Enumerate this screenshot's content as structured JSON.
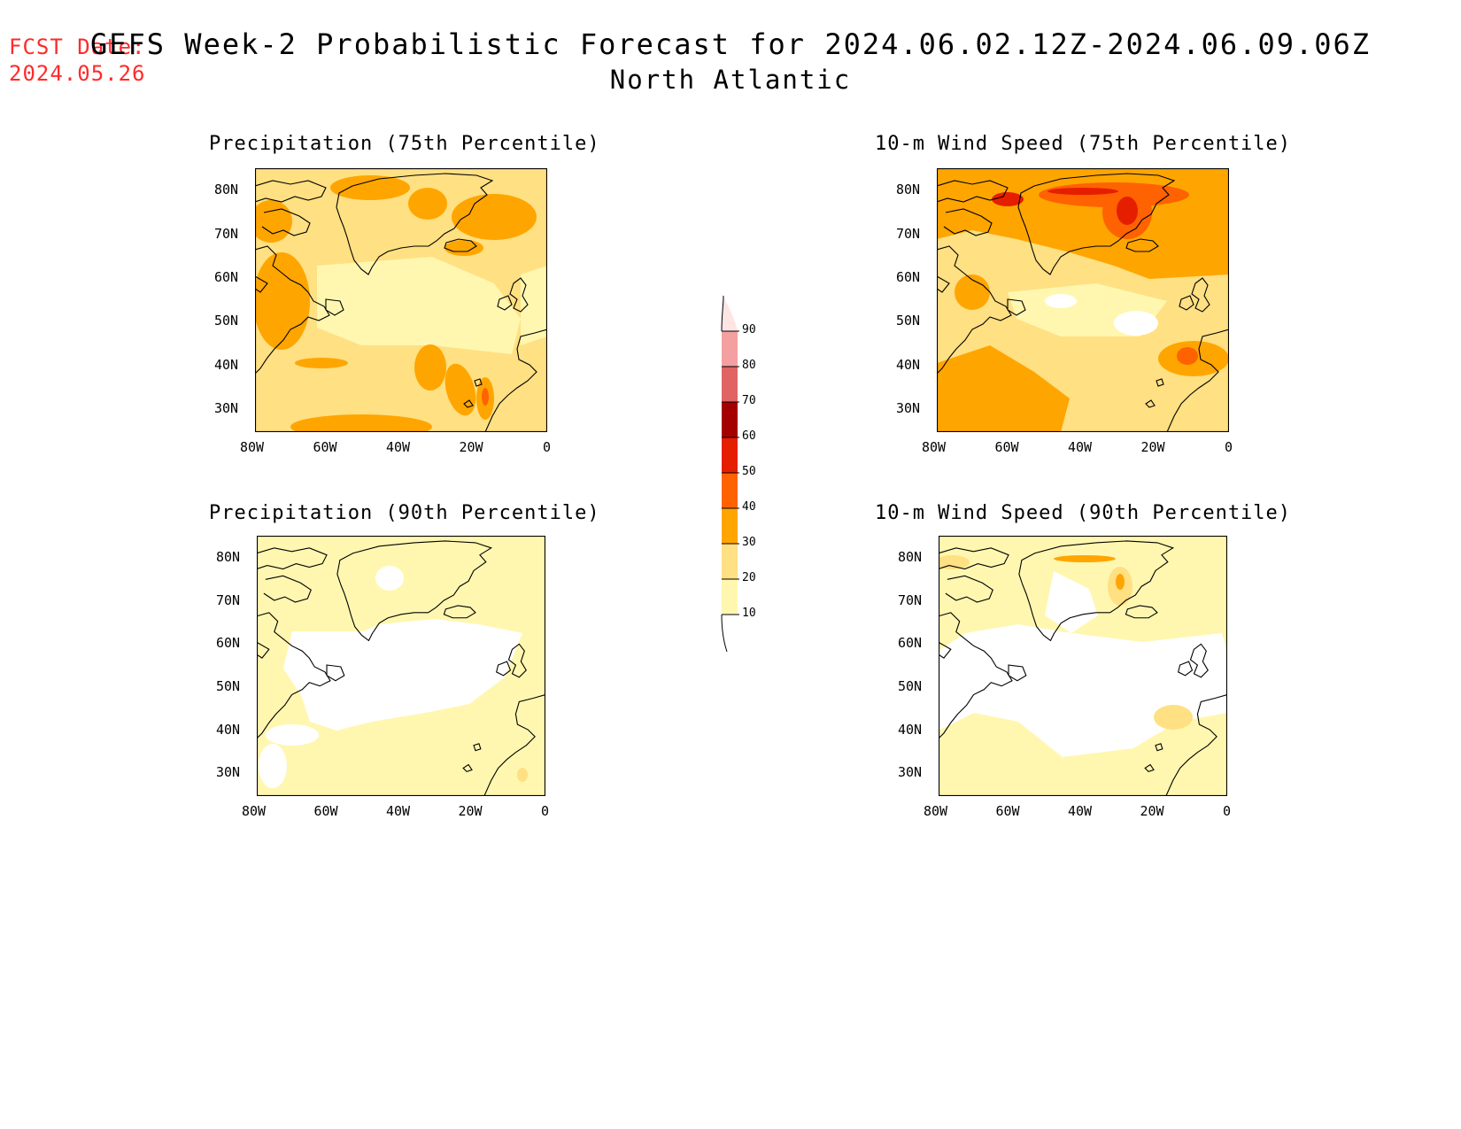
{
  "header": {
    "fcst_label": "FCST Date:",
    "fcst_date": "2024.05.26",
    "title": "GEFS Week-2 Probabilistic Forecast for 2024.06.02.12Z-2024.06.09.06Z",
    "subtitle": "North Atlantic"
  },
  "axes": {
    "lat_ticks": [
      "80N",
      "70N",
      "60N",
      "50N",
      "40N",
      "30N"
    ],
    "lon_ticks": [
      "80W",
      "60W",
      "40W",
      "20W",
      "0"
    ]
  },
  "panels": [
    {
      "id": "precip75",
      "title": "Precipitation (75th Percentile)",
      "level": "high"
    },
    {
      "id": "wind75",
      "title": "10-m Wind Speed (75th Percentile)",
      "level": "higher"
    },
    {
      "id": "precip90",
      "title": "Precipitation (90th Percentile)",
      "level": "low"
    },
    {
      "id": "wind90",
      "title": "10-m Wind Speed (90th Percentile)",
      "level": "low"
    }
  ],
  "colorbar": {
    "labels": [
      "10",
      "20",
      "30",
      "40",
      "50",
      "60",
      "70",
      "80",
      "90"
    ],
    "colors": [
      "#fff7b0",
      "#ffe082",
      "#ffa500",
      "#ff6200",
      "#e61e00",
      "#a50000",
      "#e06464",
      "#f4a0a0",
      "#ffe4e4"
    ]
  }
}
